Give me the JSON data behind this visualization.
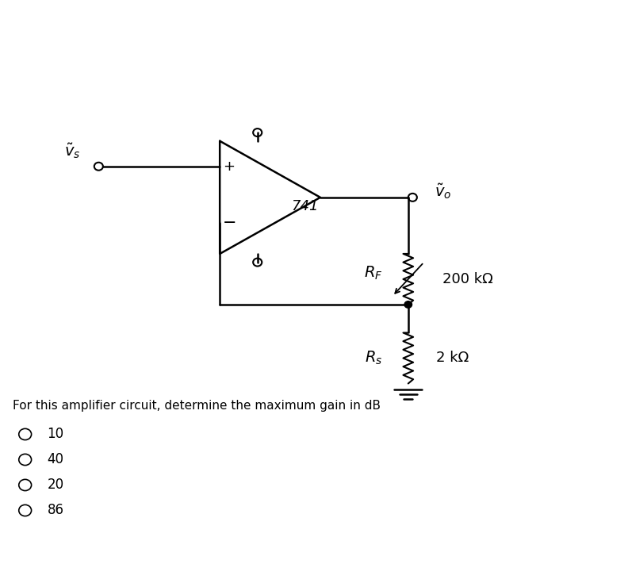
{
  "bg_color": "#f0f0f0",
  "title": "",
  "question_text": "For this amplifier circuit, determine the maximum gain in dB",
  "choices": [
    "10",
    "40",
    "20",
    "86"
  ],
  "op_amp_label": "741",
  "rf_label": "R_F",
  "rs_label": "R_s",
  "rf_value": "200 kΩ",
  "rs_value": "2 kΩ",
  "vs_label": "v_s",
  "vo_label": "v_o"
}
